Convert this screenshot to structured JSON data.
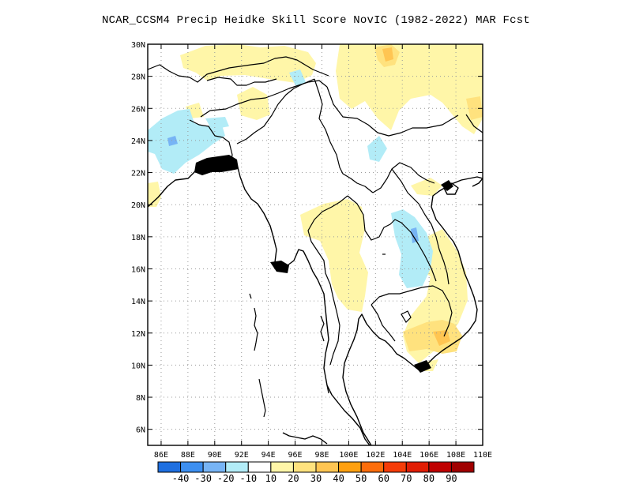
{
  "title": "NCAR_CCSM4 Precip Heidke Skill Score NovIC (1982-2022) MAR Fcst",
  "map": {
    "lon_range": [
      85,
      110
    ],
    "lat_range": [
      5,
      30
    ],
    "lon_ticks": [
      "86E",
      "88E",
      "90E",
      "92E",
      "94E",
      "96E",
      "98E",
      "100E",
      "102E",
      "104E",
      "106E",
      "108E",
      "110E"
    ],
    "lat_ticks": [
      "6N",
      "8N",
      "10N",
      "12N",
      "14N",
      "16N",
      "18N",
      "20N",
      "22N",
      "24N",
      "26N",
      "28N",
      "30N"
    ],
    "gridlines": "dotted"
  },
  "colorbar": {
    "colors": [
      "#1e6fe0",
      "#3d8ff0",
      "#77b4f5",
      "#b2ecf7",
      "#ffffff",
      "#fff6a8",
      "#ffe27e",
      "#ffc552",
      "#ffa010",
      "#fd6d0b",
      "#f53c08",
      "#e11d04",
      "#bf0000",
      "#a00000"
    ],
    "labels": [
      "-40",
      "-30",
      "-20",
      "-10",
      "10",
      "20",
      "30",
      "40",
      "50",
      "60",
      "70",
      "80",
      "90"
    ]
  }
}
